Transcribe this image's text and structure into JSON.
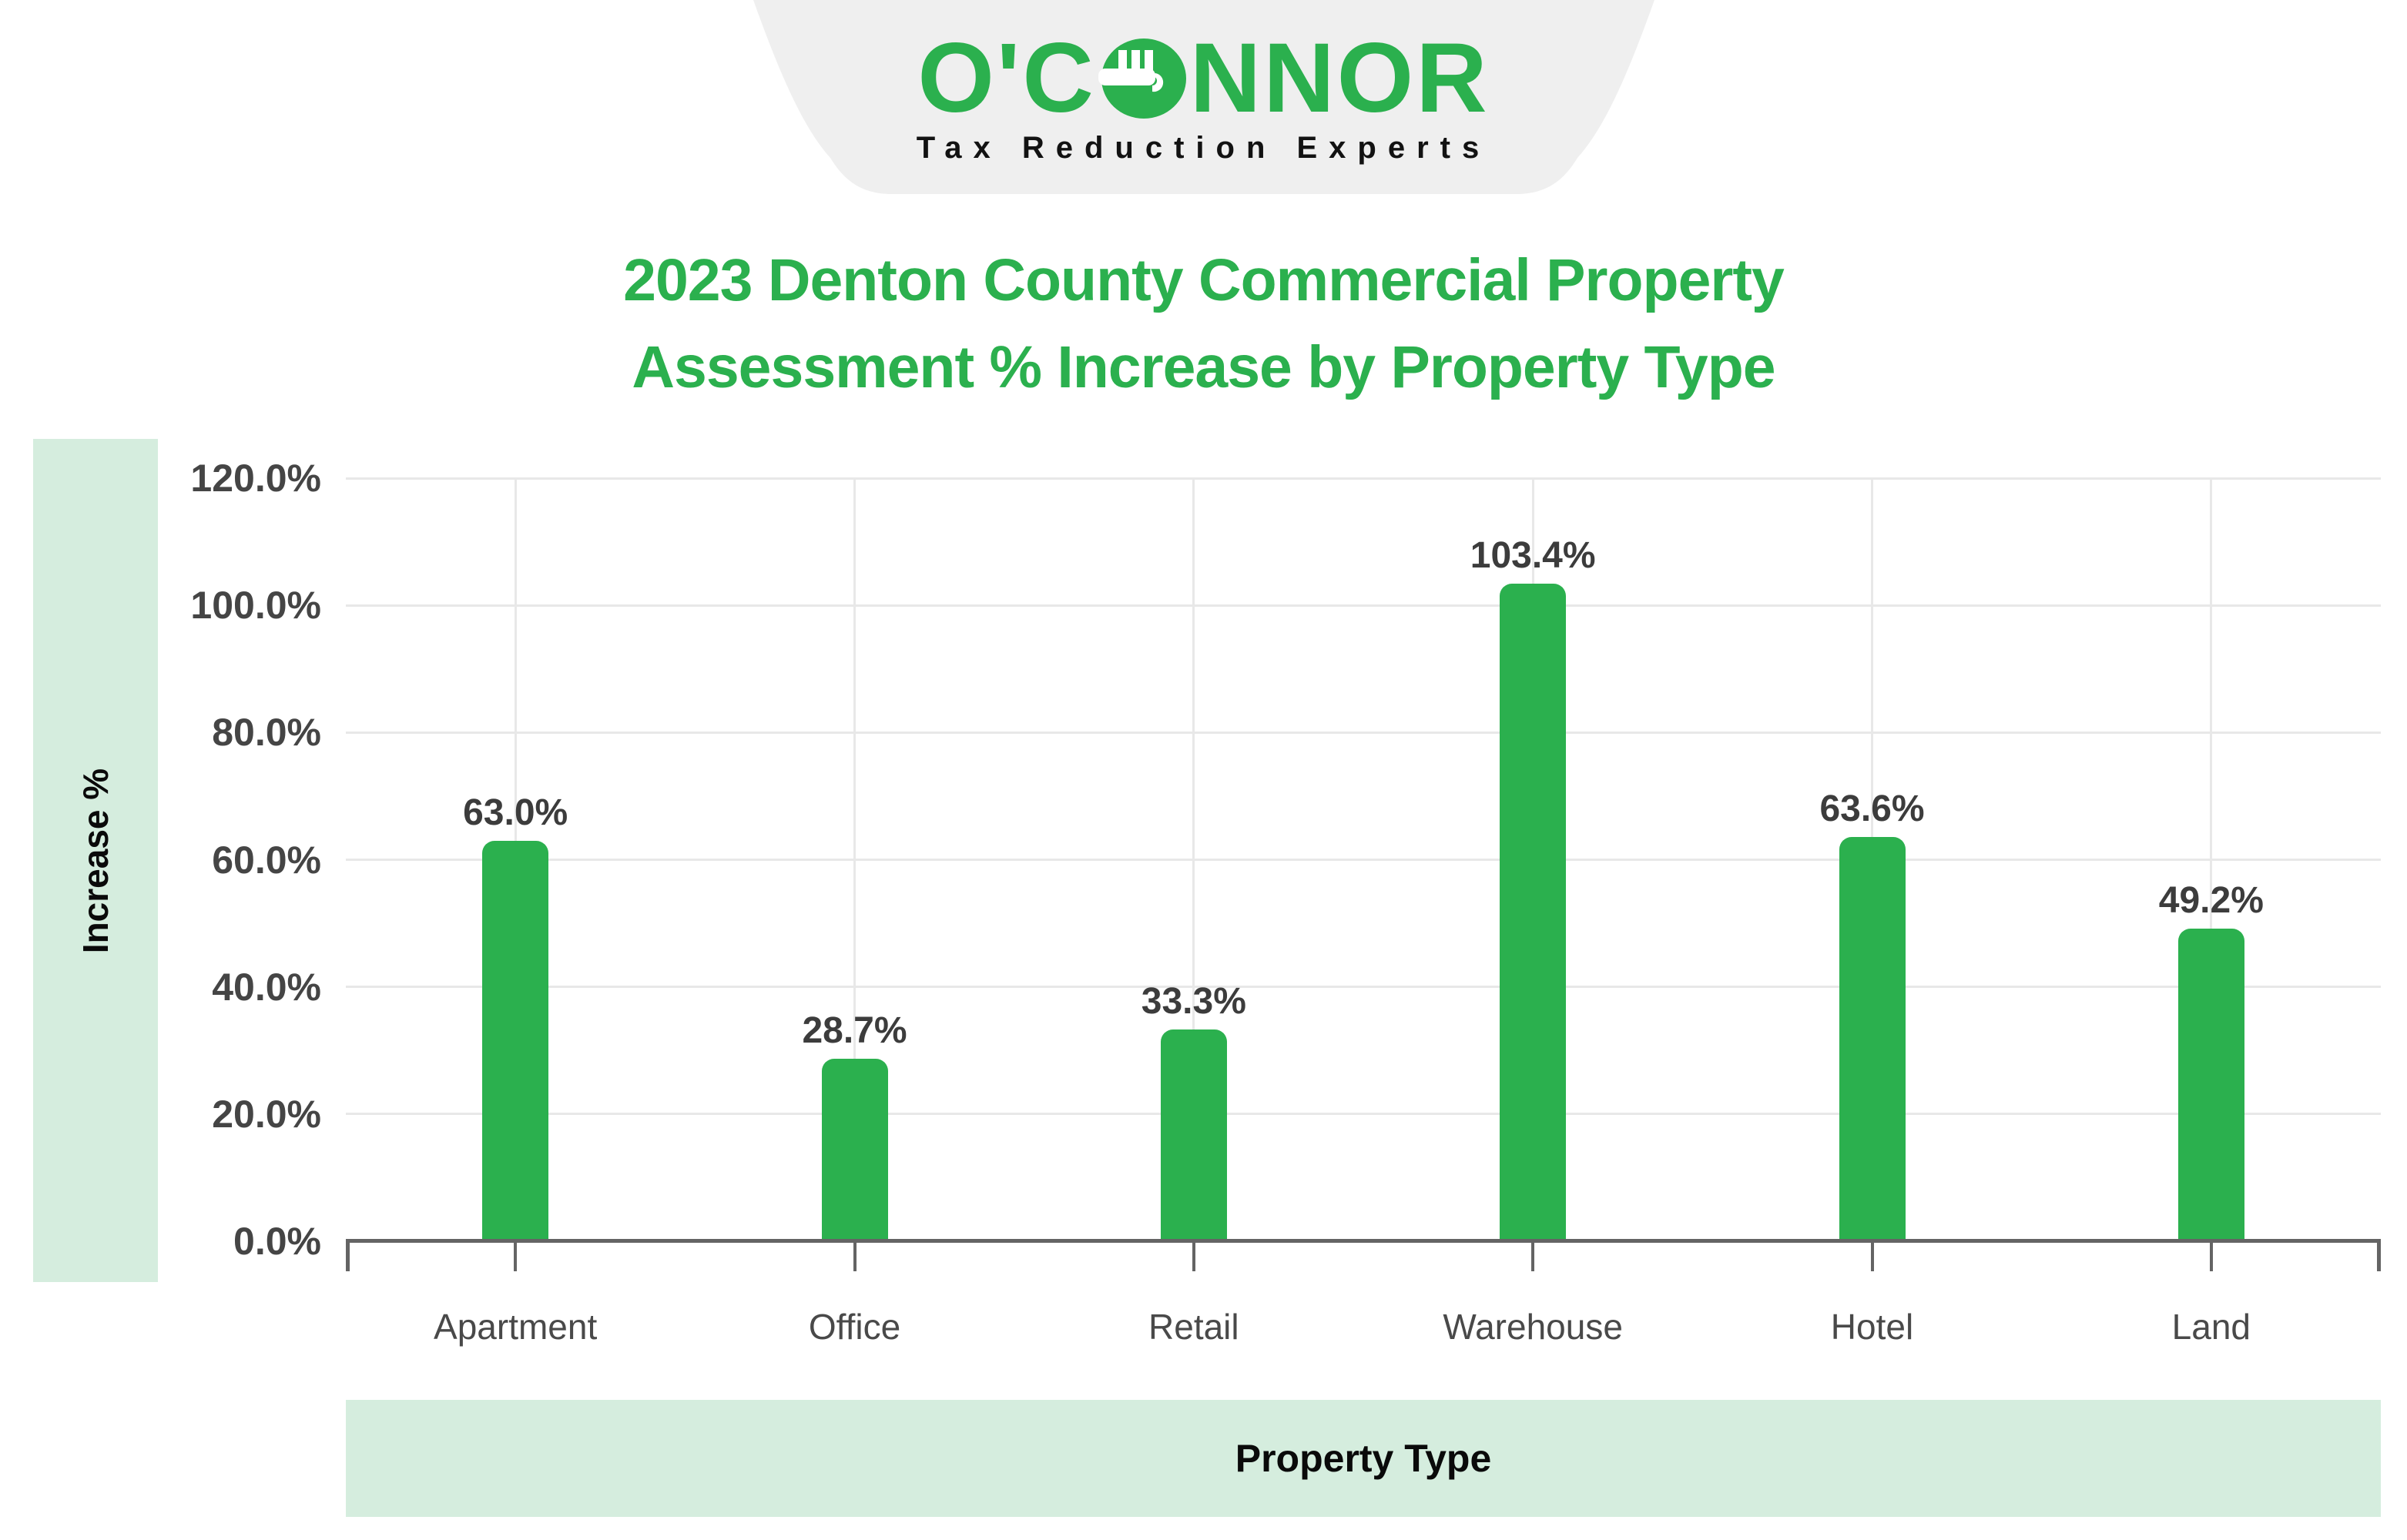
{
  "brand": {
    "name": "O'CONNOR",
    "logo_prefix": "O'C",
    "logo_suffix": "NNOR",
    "tagline": "Tax Reduction Experts"
  },
  "title": {
    "line1": "2023 Denton County Commercial Property",
    "line2": "Assessment % Increase by Property Type"
  },
  "chart_data": {
    "type": "bar",
    "title": "2023 Denton County Commercial Property Assessment % Increase by Property Type",
    "categories": [
      "Apartment",
      "Office",
      "Retail",
      "Warehouse",
      "Hotel",
      "Land"
    ],
    "values": [
      63.0,
      28.7,
      33.3,
      103.4,
      63.6,
      49.2
    ],
    "value_labels": [
      "63.0%",
      "28.7%",
      "33.3%",
      "103.4%",
      "63.6%",
      "49.2%"
    ],
    "xlabel": "Property Type",
    "ylabel": "Increase %",
    "ylim": [
      0,
      120
    ],
    "ytick_step": 20,
    "ytick_labels": [
      "0.0%",
      "20.0%",
      "40.0%",
      "60.0%",
      "80.0%",
      "100.0%",
      "120.0%"
    ],
    "grid": true,
    "legend": false,
    "bar_color": "#2BB04E"
  },
  "colors": {
    "brand_green": "#2BB04E",
    "band_mint": "#D5EDDE",
    "banner_gray": "#EFEFEF",
    "gridline": "#E8E8E8",
    "axis_line": "#646464",
    "tick_label": "#454545",
    "category_label": "#494949",
    "value_label": "#3C3C3C"
  }
}
